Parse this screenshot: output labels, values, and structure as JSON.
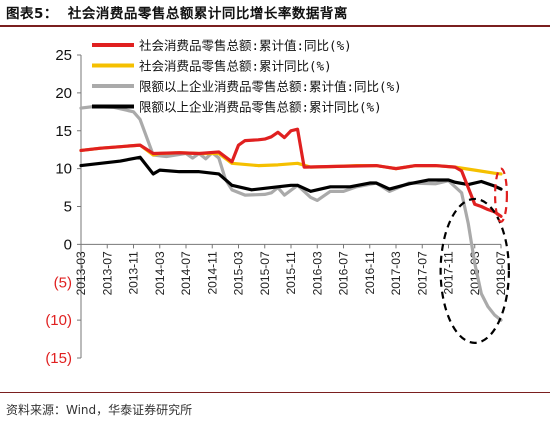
{
  "header": {
    "figure_label": "图表5：",
    "title": "社会消费品零售总额累计同比增长率数据背离"
  },
  "source": "资料来源：Wind，华泰证券研究所",
  "colors": {
    "red": "#e02020",
    "yellow": "#f5c000",
    "grey": "#aaaaaa",
    "black": "#000000",
    "negative_tick": "#e02020",
    "ellipse": "#000000",
    "ellipse_red": "#e02020"
  },
  "chart_data": {
    "type": "line",
    "ylim": [
      -15,
      25
    ],
    "yticks": [
      {
        "value": 25,
        "label": "25"
      },
      {
        "value": 20,
        "label": "20"
      },
      {
        "value": 15,
        "label": "15"
      },
      {
        "value": 10,
        "label": "10"
      },
      {
        "value": 5,
        "label": "5"
      },
      {
        "value": 0,
        "label": "0"
      },
      {
        "value": -5,
        "label": "(5)"
      },
      {
        "value": -10,
        "label": "(10)"
      },
      {
        "value": -15,
        "label": "(15)"
      }
    ],
    "xlim": [
      "2013-03",
      "2018-07"
    ],
    "xticks": [
      "2013-03",
      "2013-07",
      "2013-11",
      "2014-03",
      "2014-07",
      "2014-11",
      "2015-03",
      "2015-07",
      "2015-11",
      "2016-03",
      "2016-07",
      "2016-11",
      "2017-03",
      "2017-07",
      "2017-11",
      "2018-03",
      "2018-07"
    ],
    "grid": false,
    "legend_position": "top-center",
    "series": [
      {
        "name": "社会消费品零售总额:累计值:同比(%)",
        "color": "red",
        "points": [
          [
            "2013-03",
            12.4
          ],
          [
            "2013-06",
            12.7
          ],
          [
            "2013-09",
            12.9
          ],
          [
            "2013-12",
            13.1
          ],
          [
            "2014-02",
            12.0
          ],
          [
            "2014-06",
            12.1
          ],
          [
            "2014-09",
            12.0
          ],
          [
            "2014-12",
            12.2
          ],
          [
            "2015-02",
            10.9
          ],
          [
            "2015-03",
            13.1
          ],
          [
            "2015-04",
            13.7
          ],
          [
            "2015-06",
            13.8
          ],
          [
            "2015-07",
            13.9
          ],
          [
            "2015-08",
            14.2
          ],
          [
            "2015-09",
            14.8
          ],
          [
            "2015-10",
            14.1
          ],
          [
            "2015-11",
            15.0
          ],
          [
            "2015-12",
            15.2
          ],
          [
            "2016-01",
            10.2
          ],
          [
            "2016-06",
            10.3
          ],
          [
            "2016-12",
            10.4
          ],
          [
            "2017-03",
            10.0
          ],
          [
            "2017-06",
            10.4
          ],
          [
            "2017-09",
            10.4
          ],
          [
            "2017-12",
            10.2
          ],
          [
            "2018-01",
            9.7
          ],
          [
            "2018-02",
            7.5
          ],
          [
            "2018-03",
            5.3
          ],
          [
            "2018-04",
            5.0
          ],
          [
            "2018-05",
            4.6
          ],
          [
            "2018-06",
            4.3
          ],
          [
            "2018-07",
            3.7
          ]
        ]
      },
      {
        "name": "社会消费品零售总额:累计同比(%)",
        "color": "yellow",
        "points": [
          [
            "2013-03",
            12.4
          ],
          [
            "2013-06",
            12.7
          ],
          [
            "2013-09",
            12.9
          ],
          [
            "2013-12",
            13.1
          ],
          [
            "2014-02",
            11.8
          ],
          [
            "2014-03",
            12.0
          ],
          [
            "2014-06",
            12.1
          ],
          [
            "2014-09",
            12.0
          ],
          [
            "2014-12",
            12.0
          ],
          [
            "2015-02",
            10.7
          ],
          [
            "2015-06",
            10.4
          ],
          [
            "2015-09",
            10.5
          ],
          [
            "2015-12",
            10.7
          ],
          [
            "2016-02",
            10.2
          ],
          [
            "2016-06",
            10.3
          ],
          [
            "2016-09",
            10.4
          ],
          [
            "2016-12",
            10.4
          ],
          [
            "2017-03",
            10.0
          ],
          [
            "2017-06",
            10.4
          ],
          [
            "2017-09",
            10.4
          ],
          [
            "2017-12",
            10.2
          ],
          [
            "2018-03",
            9.8
          ],
          [
            "2018-06",
            9.4
          ],
          [
            "2018-07",
            9.3
          ]
        ]
      },
      {
        "name": "限额以上企业消费品零售总额:累计值:同比(%)",
        "color": "grey",
        "points": [
          [
            "2013-03",
            18.0
          ],
          [
            "2013-05",
            18.2
          ],
          [
            "2013-08",
            18.1
          ],
          [
            "2013-11",
            17.5
          ],
          [
            "2013-12",
            16.5
          ],
          [
            "2014-02",
            11.8
          ],
          [
            "2014-04",
            11.6
          ],
          [
            "2014-07",
            12.0
          ],
          [
            "2014-08",
            11.4
          ],
          [
            "2014-09",
            12.0
          ],
          [
            "2014-10",
            11.3
          ],
          [
            "2014-11",
            12.1
          ],
          [
            "2014-12",
            11.4
          ],
          [
            "2015-01",
            8.6
          ],
          [
            "2015-02",
            7.2
          ],
          [
            "2015-04",
            6.5
          ],
          [
            "2015-07",
            6.6
          ],
          [
            "2015-08",
            6.8
          ],
          [
            "2015-09",
            7.5
          ],
          [
            "2015-10",
            6.5
          ],
          [
            "2015-12",
            7.8
          ],
          [
            "2016-02",
            6.2
          ],
          [
            "2016-03",
            5.8
          ],
          [
            "2016-05",
            7.0
          ],
          [
            "2016-07",
            7.0
          ],
          [
            "2016-09",
            7.6
          ],
          [
            "2016-12",
            8.1
          ],
          [
            "2017-02",
            7.0
          ],
          [
            "2017-05",
            8.1
          ],
          [
            "2017-09",
            8.0
          ],
          [
            "2017-11",
            8.4
          ],
          [
            "2018-01",
            6.8
          ],
          [
            "2018-02",
            2.8
          ],
          [
            "2018-03",
            -2.5
          ],
          [
            "2018-04",
            -6.5
          ],
          [
            "2018-05",
            -8.2
          ],
          [
            "2018-06",
            -9.3
          ],
          [
            "2018-07",
            -10.0
          ]
        ]
      },
      {
        "name": "限额以上企业消费品零售总额:累计同比(%)",
        "color": "black",
        "points": [
          [
            "2013-03",
            10.4
          ],
          [
            "2013-06",
            10.7
          ],
          [
            "2013-09",
            11.0
          ],
          [
            "2013-12",
            11.5
          ],
          [
            "2014-02",
            9.3
          ],
          [
            "2014-03",
            9.8
          ],
          [
            "2014-06",
            9.6
          ],
          [
            "2014-09",
            9.6
          ],
          [
            "2014-12",
            9.3
          ],
          [
            "2015-02",
            7.8
          ],
          [
            "2015-05",
            7.2
          ],
          [
            "2015-08",
            7.5
          ],
          [
            "2015-11",
            7.8
          ],
          [
            "2015-12",
            7.8
          ],
          [
            "2016-02",
            7.0
          ],
          [
            "2016-05",
            7.6
          ],
          [
            "2016-08",
            7.6
          ],
          [
            "2016-11",
            8.1
          ],
          [
            "2016-12",
            8.1
          ],
          [
            "2017-02",
            7.3
          ],
          [
            "2017-05",
            8.0
          ],
          [
            "2017-08",
            8.5
          ],
          [
            "2017-11",
            8.5
          ],
          [
            "2017-12",
            8.2
          ],
          [
            "2018-02",
            7.9
          ],
          [
            "2018-04",
            8.3
          ],
          [
            "2018-06",
            7.7
          ],
          [
            "2018-07",
            7.3
          ]
        ]
      }
    ],
    "annotations": [
      {
        "shape": "dashed-ellipse",
        "color": "ellipse",
        "center": [
          "2018-03",
          -3.5
        ],
        "rx_months": 5.2,
        "ry": 9.5
      },
      {
        "shape": "dashed-ellipse",
        "color": "ellipse_red",
        "center": [
          "2018-07",
          6.5
        ],
        "rx_months": 0.9,
        "ry": 3.5
      }
    ]
  }
}
